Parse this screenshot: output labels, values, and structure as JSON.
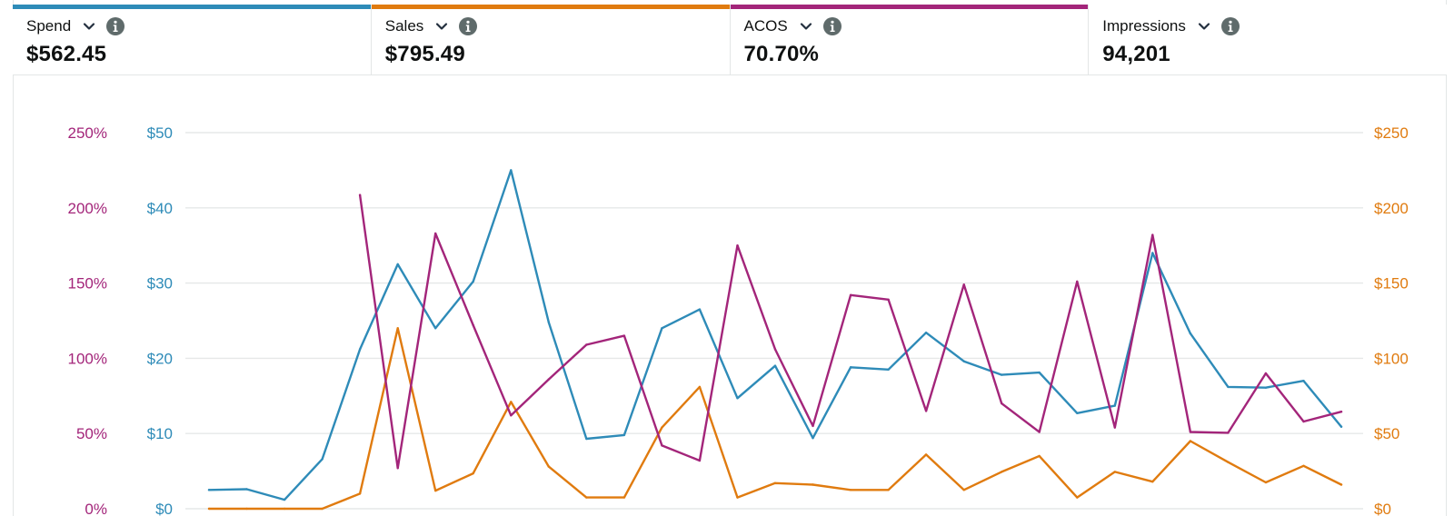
{
  "metrics": [
    {
      "label": "Spend",
      "value": "$562.45",
      "color": "#2e8bb8"
    },
    {
      "label": "Sales",
      "value": "$795.49",
      "color": "#e07b0f"
    },
    {
      "label": "ACOS",
      "value": "70.70%",
      "color": "#a3257a"
    },
    {
      "label": "Impressions",
      "value": "94,201",
      "color": ""
    }
  ],
  "icons": {
    "dropdown": "chevron-down-icon",
    "info": "info-icon"
  },
  "chart_data": {
    "type": "line",
    "x": [
      0,
      1,
      2,
      3,
      4,
      5,
      6,
      7,
      8,
      9,
      10,
      11,
      12,
      13,
      14,
      15,
      16,
      17,
      18,
      19,
      20,
      21,
      22,
      23,
      24,
      25,
      26,
      27,
      28,
      29,
      30
    ],
    "acos_ticks": [
      "0%",
      "50%",
      "100%",
      "150%",
      "200%",
      "250%"
    ],
    "spend_ticks": [
      "$0",
      "$10",
      "$20",
      "$30",
      "$40",
      "$50"
    ],
    "sales_ticks": [
      "$0",
      "$50",
      "$100",
      "$150",
      "$200",
      "$250"
    ],
    "axes": {
      "acos": {
        "range": [
          0,
          250
        ],
        "side": "left-outer",
        "color": "#a3257a"
      },
      "spend": {
        "range": [
          0,
          50
        ],
        "side": "left-inner",
        "color": "#2e8bb8"
      },
      "sales": {
        "range": [
          0,
          250
        ],
        "side": "right",
        "color": "#e07b0f"
      }
    },
    "grid": true,
    "series": [
      {
        "name": "Spend",
        "axis": "spend",
        "color": "#2e8bb8",
        "values": [
          2.5,
          2.6,
          1.2,
          6.6,
          21.2,
          32.5,
          24,
          30.2,
          45,
          24.8,
          9.3,
          9.8,
          24,
          26.5,
          14.7,
          19,
          9.4,
          18.8,
          18.5,
          23.4,
          19.6,
          17.8,
          18.1,
          12.7,
          13.7,
          34,
          23.3,
          16.2,
          16.1,
          17,
          10.9
        ]
      },
      {
        "name": "Sales",
        "axis": "sales",
        "color": "#e07b0f",
        "values": [
          0,
          0,
          0,
          0,
          10,
          120,
          12,
          23.5,
          71,
          28,
          7.5,
          7.5,
          54,
          81,
          7.5,
          17,
          16,
          12.5,
          12.5,
          36,
          12.5,
          24.5,
          35,
          7.5,
          24.5,
          18,
          45,
          31,
          17.5,
          28.5,
          16
        ]
      },
      {
        "name": "ACOS",
        "axis": "acos",
        "values": [
          null,
          null,
          null,
          null,
          208.5,
          27,
          183,
          122,
          62,
          86,
          109,
          115,
          42,
          32,
          175,
          106,
          55,
          142,
          139,
          65,
          149,
          70,
          51,
          151,
          54,
          182,
          51,
          50.5,
          90,
          58,
          64.5
        ],
        "color": "#a3257a"
      }
    ]
  }
}
